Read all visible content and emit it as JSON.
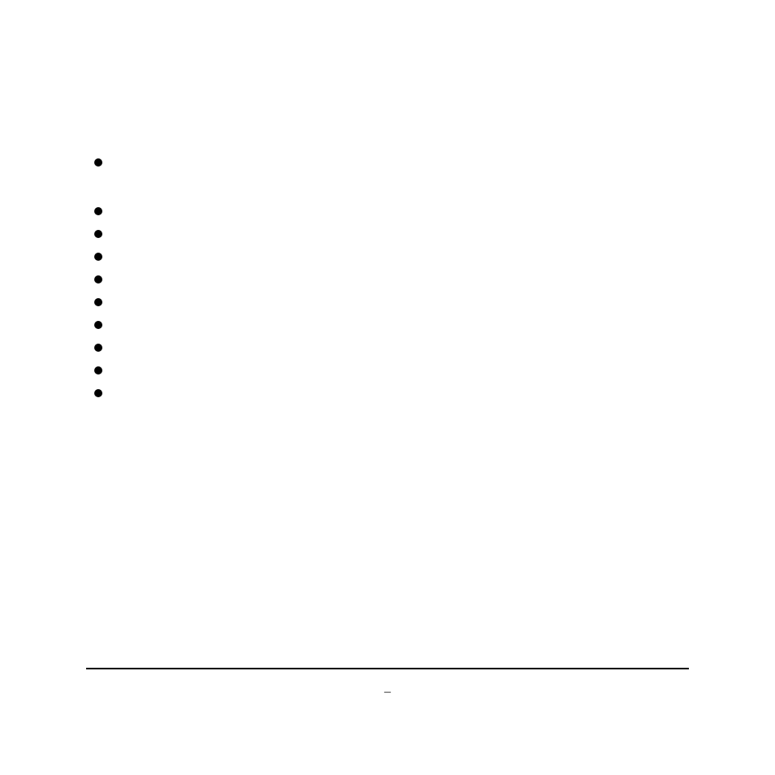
{
  "document": {
    "background_color": "#ffffff",
    "text_color": "#000000",
    "bullet_color": "#000000",
    "hr_color": "#000000",
    "bullets": [
      {
        "text": ""
      },
      {
        "text": ""
      },
      {
        "text": ""
      },
      {
        "text": ""
      },
      {
        "text": ""
      },
      {
        "text": ""
      },
      {
        "text": ""
      },
      {
        "text": ""
      },
      {
        "text": ""
      },
      {
        "text": ""
      }
    ],
    "footer": "–"
  }
}
